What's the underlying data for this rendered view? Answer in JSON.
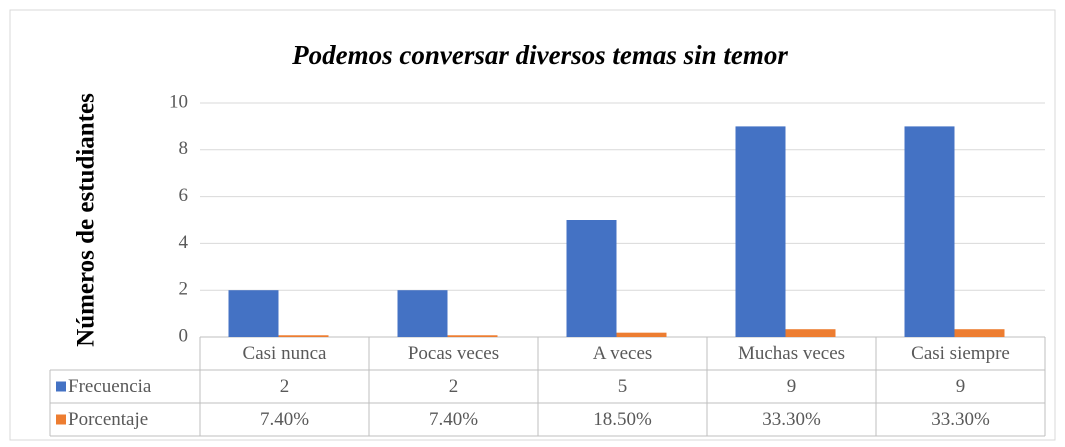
{
  "chart_data": {
    "type": "bar",
    "title": "Podemos conversar diversos temas sin temor",
    "y_label": "Números de estudiantes",
    "categories": [
      "Casi nunca",
      "Pocas veces",
      "A veces",
      "Muchas veces",
      "Casi siempre"
    ],
    "series": [
      {
        "name": "Frecuencia",
        "color": "#4472c4",
        "values": [
          2,
          2,
          5,
          9,
          9
        ]
      },
      {
        "name": "Porcentaje",
        "color": "#ed7d31",
        "values": [
          0.074,
          0.074,
          0.185,
          0.333,
          0.333
        ],
        "value_labels": [
          "7.40%",
          "7.40%",
          "18.50%",
          "33.30%",
          "33.30%"
        ]
      }
    ],
    "ylim": [
      0,
      10
    ],
    "yticks": [
      0,
      2,
      4,
      6,
      8,
      10
    ],
    "grid": true,
    "data_table": true
  }
}
